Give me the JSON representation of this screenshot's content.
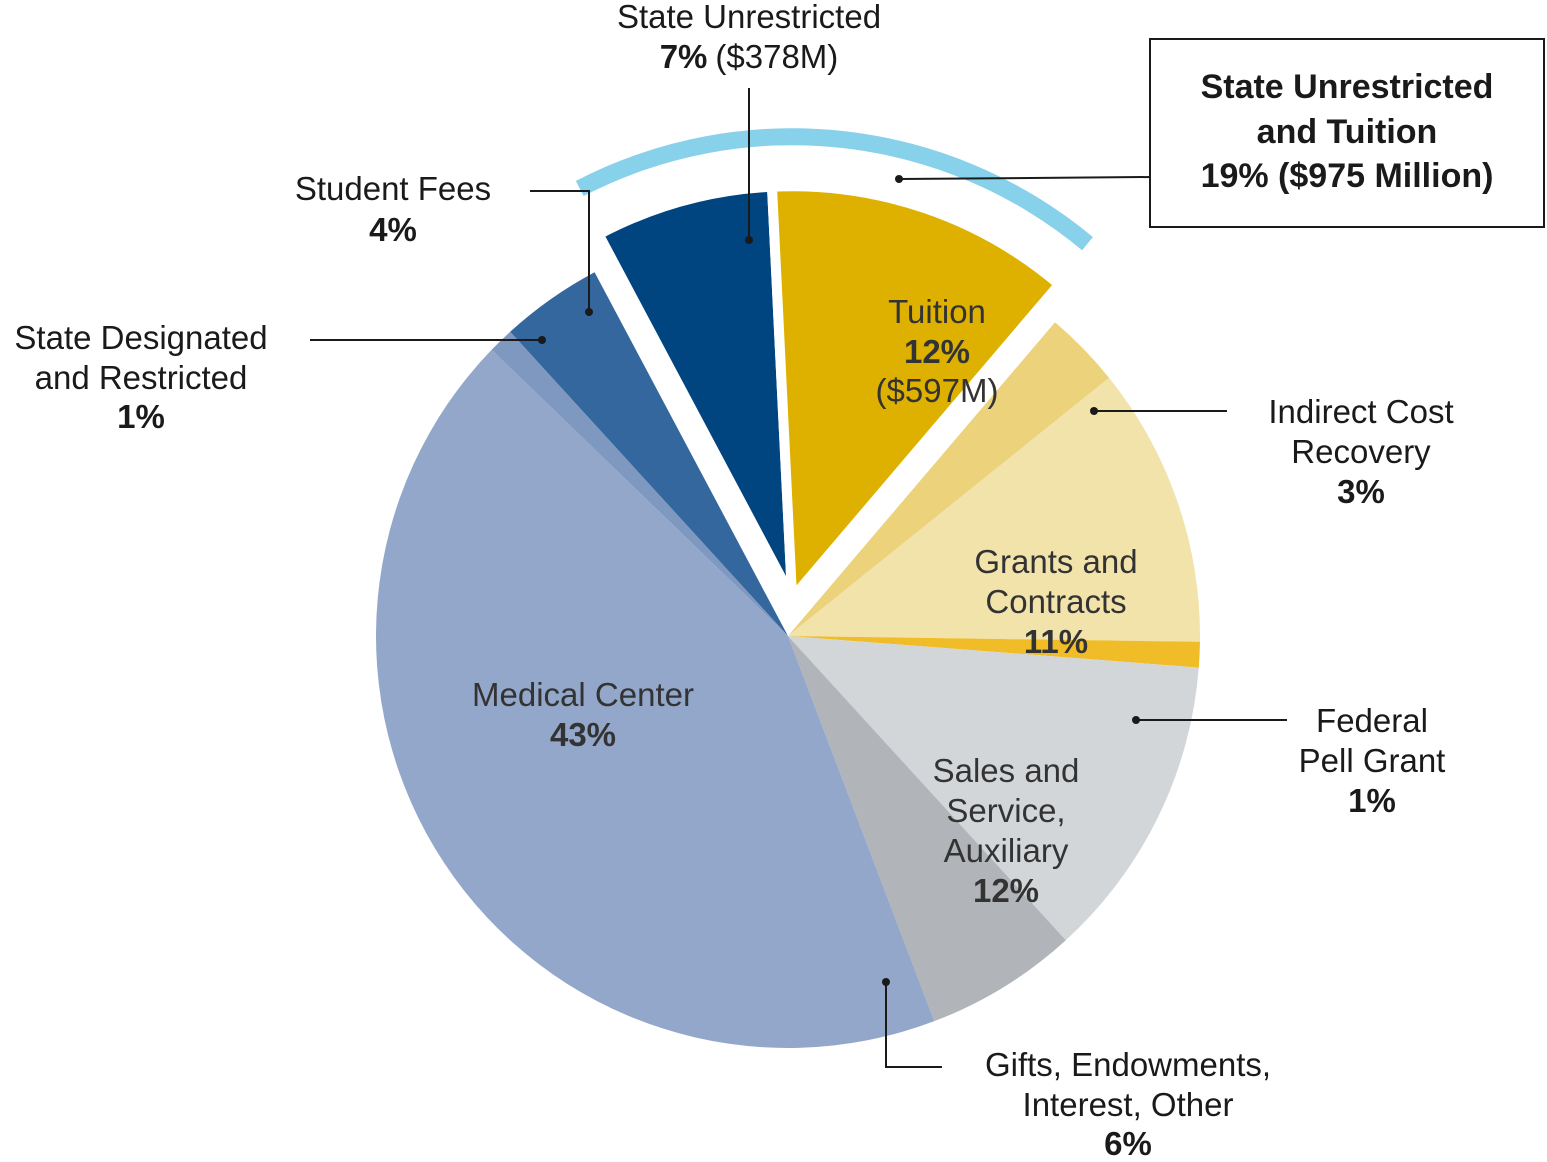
{
  "chart_data": {
    "type": "pie",
    "slices": [
      {
        "key": "state_unrestricted",
        "label_lines": [
          "State Unrestricted"
        ],
        "pct_text": "7%",
        "amount_text": "($378M)",
        "value": 7,
        "color": "#00457f"
      },
      {
        "key": "tuition",
        "label_lines": [
          "Tuition"
        ],
        "pct_text": "12%",
        "amount_text": "($597M)",
        "value": 12,
        "color": "#deb100"
      },
      {
        "key": "indirect_cost_recovery",
        "label_lines": [
          "Indirect Cost",
          "Recovery"
        ],
        "pct_text": "3%",
        "value": 3,
        "color": "#ebd27b"
      },
      {
        "key": "grants_and_contracts",
        "label_lines": [
          "Grants and",
          "Contracts"
        ],
        "pct_text": "11%",
        "value": 11,
        "color": "#f2e3ab"
      },
      {
        "key": "federal_pell_grant",
        "label_lines": [
          "Federal",
          "Pell Grant"
        ],
        "pct_text": "1%",
        "value": 1,
        "color": "#f0bd28"
      },
      {
        "key": "sales_and_service",
        "label_lines": [
          "Sales and",
          "Service,",
          "Auxiliary"
        ],
        "pct_text": "12%",
        "value": 12,
        "color": "#d3d6d9"
      },
      {
        "key": "gifts_endowments",
        "label_lines": [
          "Gifts, Endowments,",
          "Interest, Other"
        ],
        "pct_text": "6%",
        "value": 6,
        "color": "#b1b4b8"
      },
      {
        "key": "medical_center",
        "label_lines": [
          "Medical Center"
        ],
        "pct_text": "43%",
        "value": 43,
        "color": "#93a7ca"
      },
      {
        "key": "state_designated",
        "label_lines": [
          "State Designated",
          "and Restricted"
        ],
        "pct_text": "1%",
        "value": 1,
        "color": "#7f98c0"
      },
      {
        "key": "student_fees",
        "label_lines": [
          "Student Fees"
        ],
        "pct_text": "4%",
        "value": 4,
        "color": "#33679d"
      }
    ],
    "highlight": {
      "lines": [
        "State Unrestricted",
        "and Tuition",
        "19% ($975 Million)"
      ],
      "slices": [
        "state_unrestricted",
        "tuition"
      ],
      "color": "#87d1ea"
    }
  }
}
